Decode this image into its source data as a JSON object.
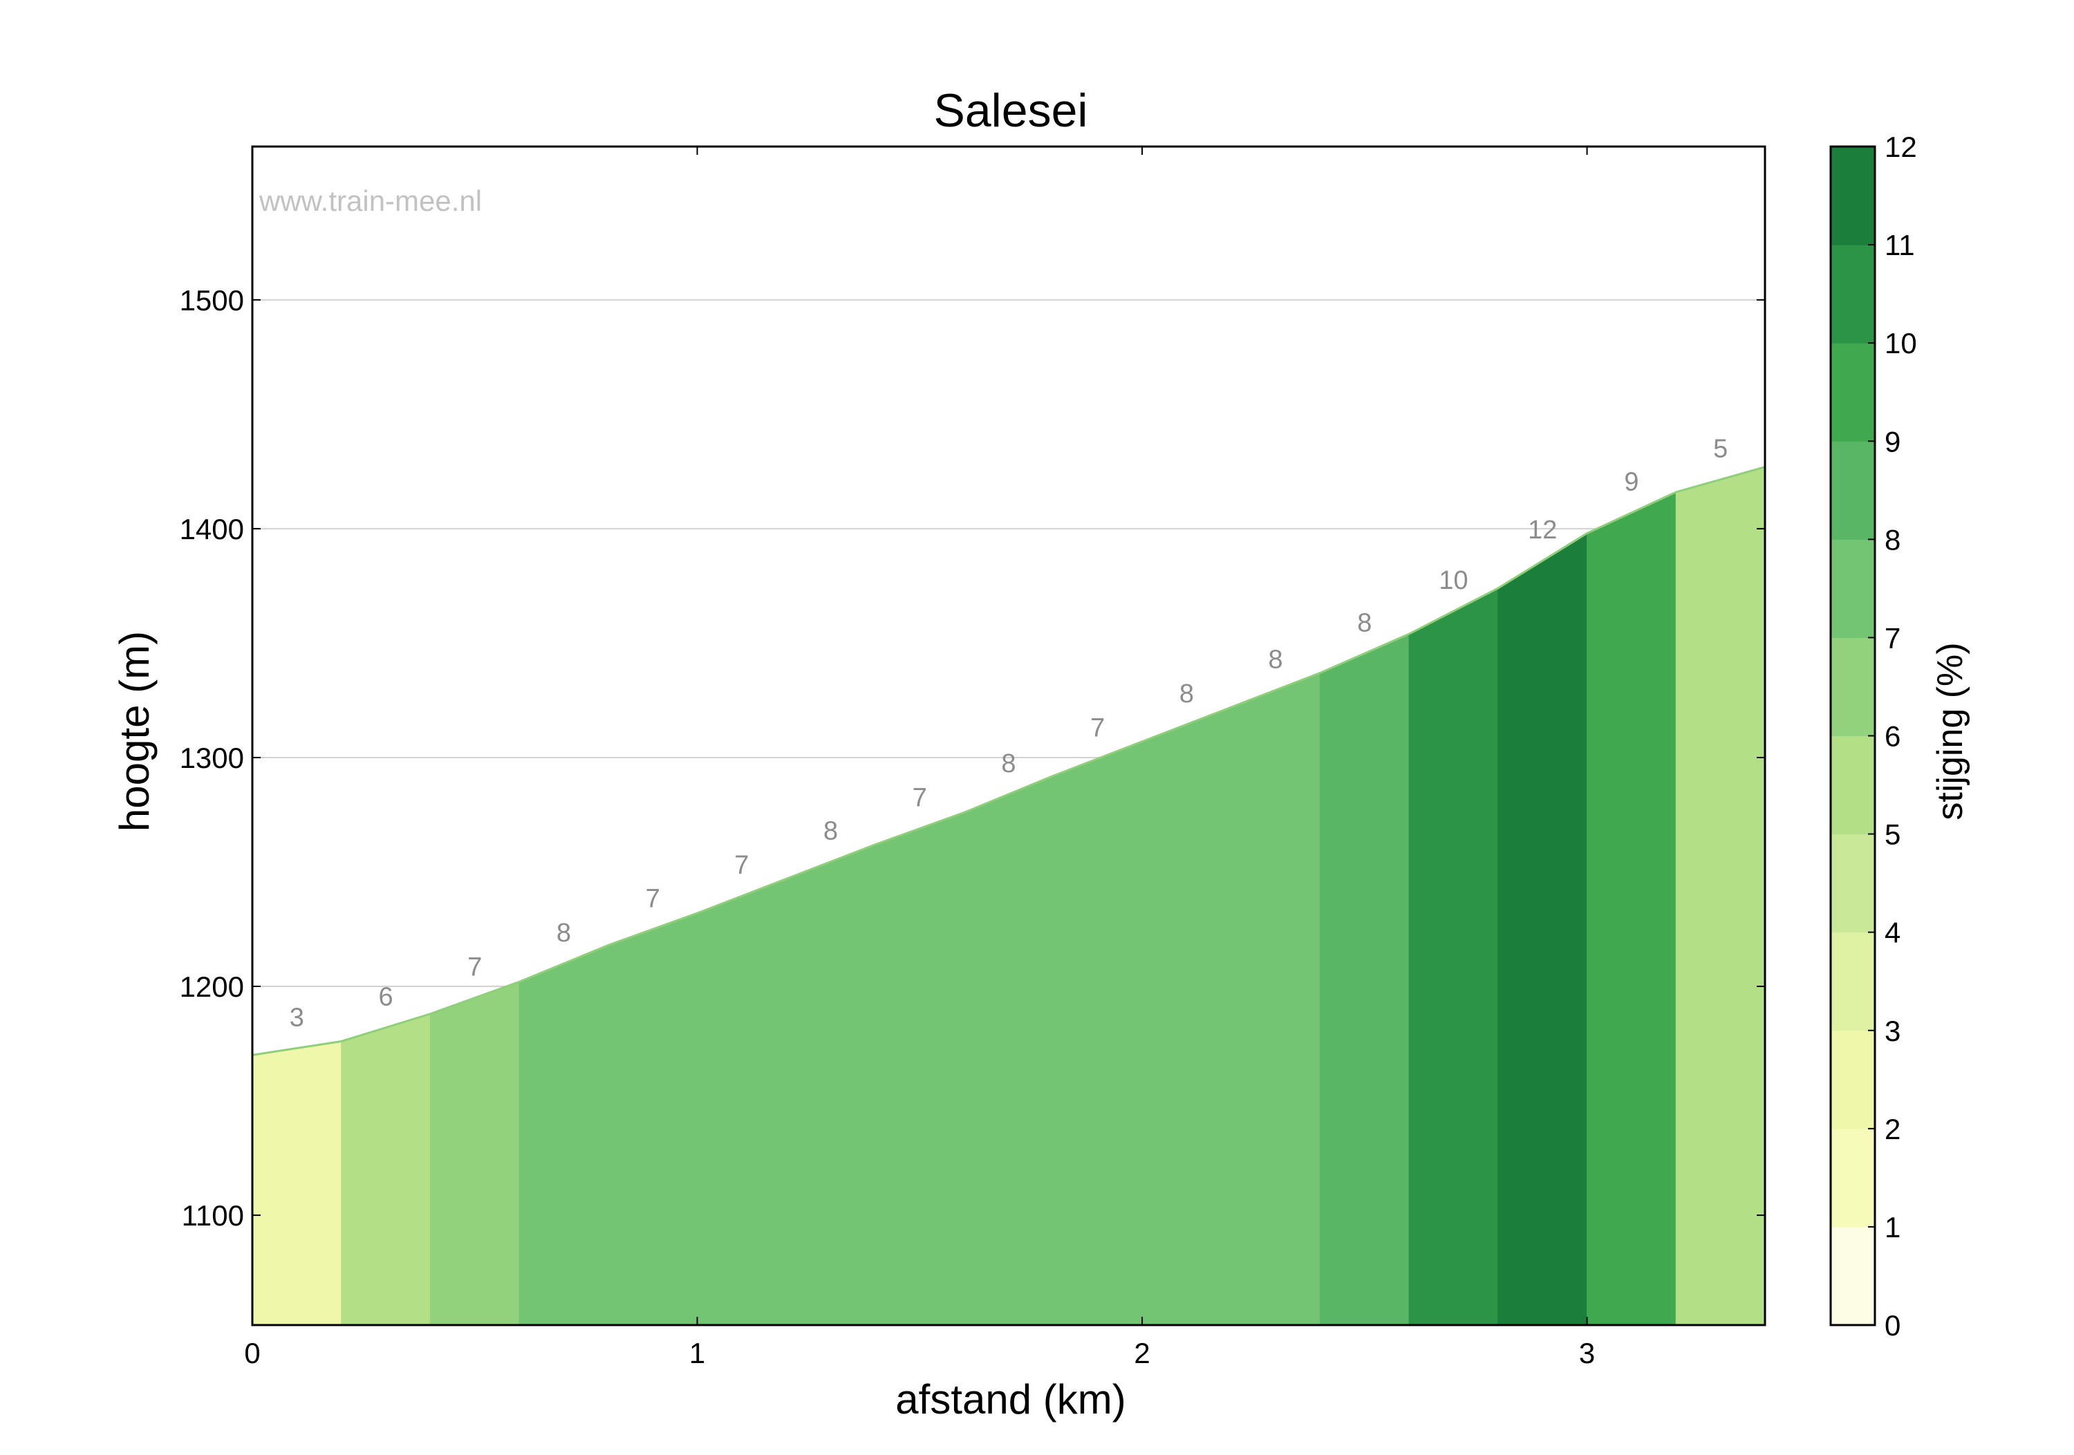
{
  "chart_data": {
    "type": "area",
    "title": "Salesei",
    "xlabel": "afstand (km)",
    "ylabel": "hoogte (m)",
    "watermark": "www.train-mee.nl",
    "xlim": [
      0,
      3.4
    ],
    "ylim": [
      1052,
      1567
    ],
    "xticks": [
      0,
      1,
      2,
      3
    ],
    "yticks": [
      1100,
      1200,
      1300,
      1400,
      1500
    ],
    "grid": "horizontal",
    "profile": {
      "x": [
        0,
        0.2,
        0.4,
        0.6,
        0.8,
        1.0,
        1.2,
        1.4,
        1.6,
        1.8,
        2.0,
        2.2,
        2.4,
        2.6,
        2.8,
        3.0,
        3.2,
        3.4
      ],
      "y": [
        1170,
        1176,
        1188,
        1202,
        1218,
        1232,
        1247,
        1262,
        1276,
        1292,
        1307,
        1322,
        1337,
        1354,
        1374,
        1398,
        1416,
        1427
      ]
    },
    "segments": [
      {
        "x_start": 0.0,
        "x_end": 0.2,
        "gradient": 3,
        "label": "3"
      },
      {
        "x_start": 0.2,
        "x_end": 0.4,
        "gradient": 6,
        "label": "6"
      },
      {
        "x_start": 0.4,
        "x_end": 0.6,
        "gradient": 7,
        "label": "7"
      },
      {
        "x_start": 0.6,
        "x_end": 0.8,
        "gradient": 8,
        "label": "8"
      },
      {
        "x_start": 0.8,
        "x_end": 1.0,
        "gradient": 7,
        "label": "7"
      },
      {
        "x_start": 1.0,
        "x_end": 1.2,
        "gradient": 7,
        "label": "7"
      },
      {
        "x_start": 1.2,
        "x_end": 1.4,
        "gradient": 8,
        "label": "8"
      },
      {
        "x_start": 1.4,
        "x_end": 1.6,
        "gradient": 7,
        "label": "7"
      },
      {
        "x_start": 1.6,
        "x_end": 1.8,
        "gradient": 8,
        "label": "8"
      },
      {
        "x_start": 1.8,
        "x_end": 2.0,
        "gradient": 7,
        "label": "7"
      },
      {
        "x_start": 2.0,
        "x_end": 2.2,
        "gradient": 8,
        "label": "8"
      },
      {
        "x_start": 2.2,
        "x_end": 2.4,
        "gradient": 8,
        "label": "8"
      },
      {
        "x_start": 2.4,
        "x_end": 2.6,
        "gradient": 8,
        "label": "8"
      },
      {
        "x_start": 2.6,
        "x_end": 2.8,
        "gradient": 10,
        "label": "10"
      },
      {
        "x_start": 2.8,
        "x_end": 3.0,
        "gradient": 12,
        "label": "12"
      },
      {
        "x_start": 3.0,
        "x_end": 3.2,
        "gradient": 9,
        "label": "9"
      },
      {
        "x_start": 3.2,
        "x_end": 3.4,
        "gradient": 5,
        "label": "5"
      }
    ],
    "segment_colors": [
      "#eff8aa",
      "#b3df86",
      "#92d27c",
      "#73c574",
      "#73c574",
      "#73c574",
      "#73c574",
      "#73c574",
      "#73c574",
      "#73c574",
      "#73c574",
      "#73c574",
      "#58b665",
      "#2c9447",
      "#1b7e3b",
      "#40a94f",
      "#b3df86"
    ],
    "colorbar": {
      "label": "stijging (%)",
      "min": 0,
      "max": 12,
      "ticks": [
        0,
        1,
        2,
        3,
        4,
        5,
        6,
        7,
        8,
        9,
        10,
        11,
        12
      ],
      "colors": [
        "#fdfde5",
        "#f7fbb9",
        "#eff8aa",
        "#dff2a4",
        "#c9e898",
        "#b3df86",
        "#92d27c",
        "#73c574",
        "#58b665",
        "#40a94f",
        "#2c9447",
        "#1b7e3b"
      ]
    }
  }
}
